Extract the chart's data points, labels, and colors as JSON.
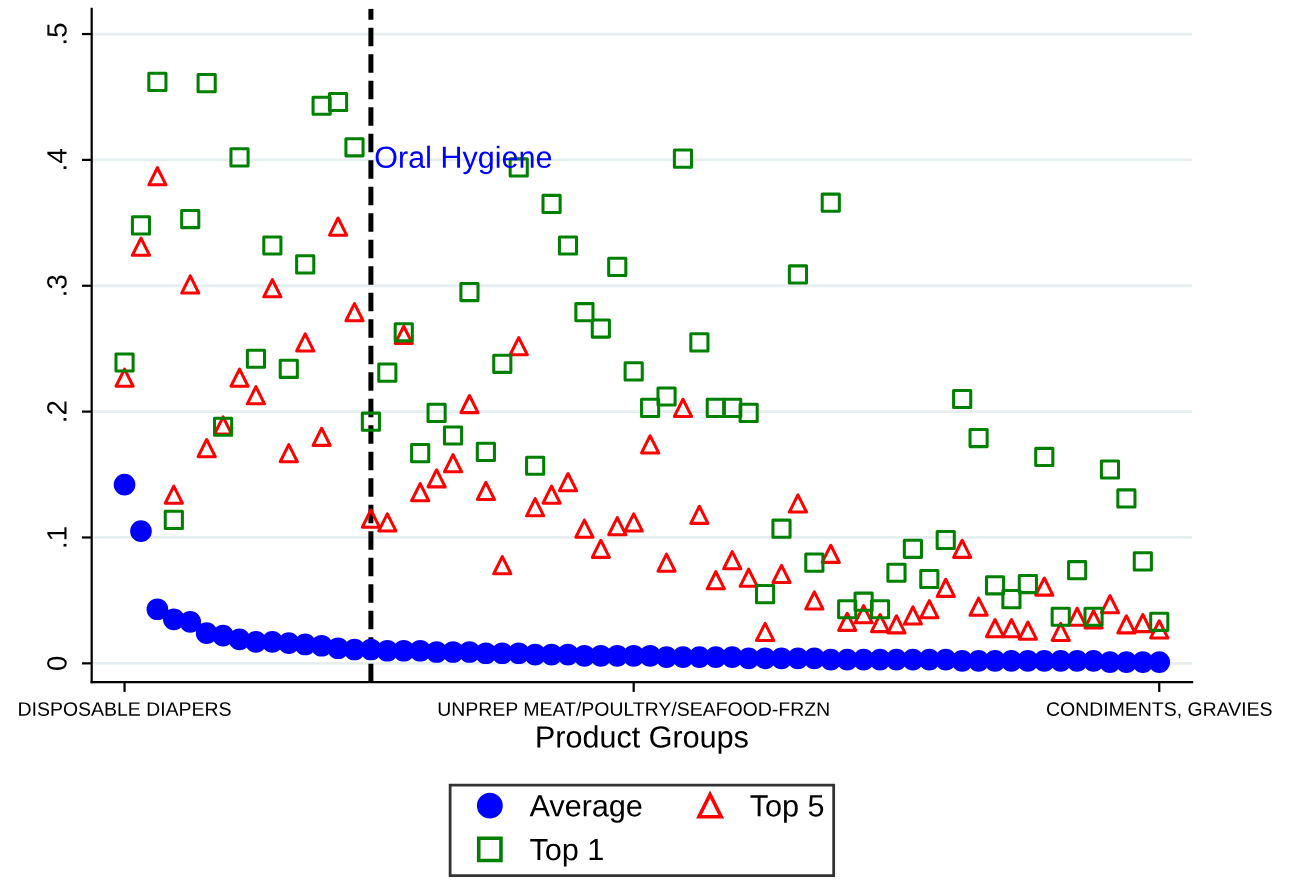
{
  "chart_data": {
    "type": "scatter",
    "xlabel": "Product Groups",
    "categories": [
      "DISPOSABLE DIAPERS",
      null,
      null,
      null,
      null,
      null,
      null,
      null,
      null,
      null,
      null,
      null,
      null,
      null,
      null,
      null,
      null,
      null,
      null,
      null,
      null,
      null,
      null,
      null,
      null,
      null,
      null,
      null,
      null,
      null,
      null,
      "UNPREP MEAT/POULTRY/SEAFOOD-FRZN",
      null,
      null,
      null,
      null,
      null,
      null,
      null,
      null,
      null,
      null,
      null,
      null,
      null,
      null,
      null,
      null,
      null,
      null,
      null,
      null,
      null,
      null,
      null,
      null,
      null,
      null,
      null,
      null,
      null,
      null,
      null,
      "CONDIMENTS, GRAVIES"
    ],
    "ylim": [
      -0.015,
      0.52
    ],
    "yticks": [
      {
        "value": 0,
        "label": "0"
      },
      {
        "value": 0.1,
        "label": ".1"
      },
      {
        "value": 0.2,
        "label": ".2"
      },
      {
        "value": 0.3,
        "label": ".3"
      },
      {
        "value": 0.4,
        "label": ".4"
      },
      {
        "value": 0.5,
        "label": ".5"
      }
    ],
    "grid": "y",
    "legend": "bottom",
    "annotations": [
      "Oral Hygiene"
    ],
    "series": [
      {
        "name": "Average",
        "color": "#0000ff",
        "marker": "circle",
        "values": [
          0.142,
          0.105,
          0.043,
          0.035,
          0.033,
          0.024,
          0.022,
          0.019,
          0.017,
          0.017,
          0.016,
          0.015,
          0.014,
          0.012,
          0.011,
          0.011,
          0.01,
          0.01,
          0.01,
          0.009,
          0.009,
          0.009,
          0.008,
          0.008,
          0.008,
          0.007,
          0.007,
          0.007,
          0.006,
          0.006,
          0.006,
          0.006,
          0.006,
          0.005,
          0.005,
          0.005,
          0.005,
          0.005,
          0.004,
          0.004,
          0.004,
          0.004,
          0.004,
          0.003,
          0.003,
          0.003,
          0.003,
          0.003,
          0.003,
          0.003,
          0.003,
          0.002,
          0.002,
          0.002,
          0.002,
          0.002,
          0.002,
          0.002,
          0.002,
          0.002,
          0.001,
          0.001,
          0.001,
          0.001
        ]
      },
      {
        "name": "Top 5",
        "color": "#ff0000",
        "marker": "triangle",
        "values": [
          0.227,
          0.331,
          0.387,
          0.134,
          0.301,
          0.171,
          0.189,
          0.227,
          0.213,
          0.298,
          0.167,
          0.255,
          0.18,
          0.347,
          0.279,
          0.115,
          0.112,
          0.261,
          0.136,
          0.147,
          0.159,
          0.206,
          0.137,
          0.078,
          0.252,
          0.124,
          0.134,
          0.144,
          0.107,
          0.091,
          0.109,
          0.112,
          0.174,
          0.08,
          0.203,
          0.118,
          0.066,
          0.082,
          0.068,
          0.025,
          0.071,
          0.127,
          0.05,
          0.087,
          0.033,
          0.039,
          0.032,
          0.031,
          0.038,
          0.043,
          0.06,
          0.091,
          0.045,
          0.028,
          0.028,
          0.026,
          0.061,
          0.025,
          0.037,
          0.035,
          0.047,
          0.031,
          0.032,
          0.027
        ]
      },
      {
        "name": "Top 1",
        "color": "#008000",
        "marker": "square",
        "values": [
          0.239,
          0.348,
          0.462,
          0.114,
          0.353,
          0.461,
          0.188,
          0.402,
          0.242,
          0.332,
          0.234,
          0.317,
          0.443,
          0.446,
          0.41,
          0.192,
          0.231,
          0.263,
          0.167,
          0.199,
          0.181,
          0.295,
          0.168,
          0.238,
          0.394,
          0.157,
          0.365,
          0.332,
          0.279,
          0.266,
          0.315,
          0.232,
          0.203,
          0.212,
          0.401,
          0.255,
          0.203,
          0.203,
          0.199,
          0.055,
          0.107,
          0.309,
          0.08,
          0.366,
          0.043,
          0.049,
          0.043,
          0.072,
          0.091,
          0.067,
          0.098,
          0.21,
          0.179,
          0.062,
          0.051,
          0.063,
          0.164,
          0.037,
          0.074,
          0.037,
          0.154,
          0.131,
          0.081,
          0.033
        ]
      }
    ]
  }
}
